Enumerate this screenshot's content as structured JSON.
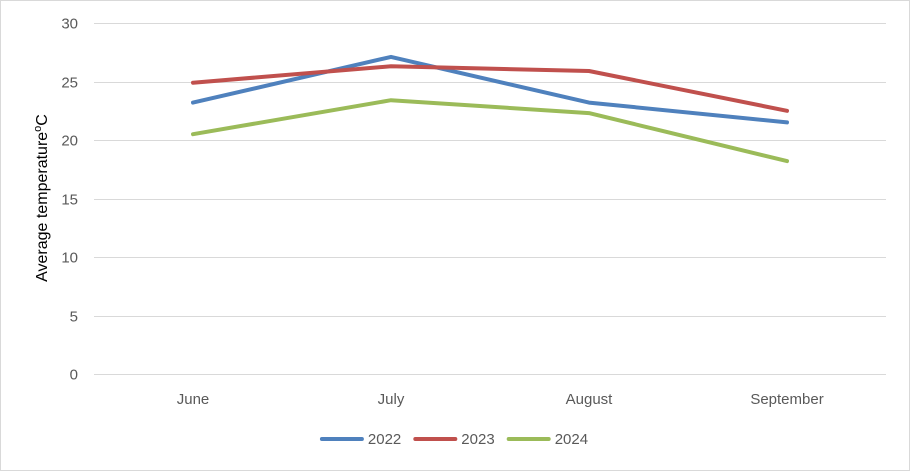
{
  "chart_data": {
    "type": "line",
    "categories": [
      "June",
      "July",
      "August",
      "September"
    ],
    "series": [
      {
        "name": "2022",
        "color": "#4F81BD",
        "values": [
          23.2,
          27.1,
          23.2,
          21.5
        ]
      },
      {
        "name": "2023",
        "color": "#C0504D",
        "values": [
          24.9,
          26.3,
          25.9,
          22.5
        ]
      },
      {
        "name": "2024",
        "color": "#9BBB59",
        "values": [
          20.5,
          23.4,
          22.3,
          18.2
        ]
      }
    ],
    "title": "",
    "xlabel": "",
    "ylabel": "Average temperature",
    "ylabel_superscript": "o",
    "ylabel_suffix": "C",
    "ylim": [
      0,
      30
    ],
    "yticks": [
      0,
      5,
      10,
      15,
      20,
      25,
      30
    ],
    "grid": true,
    "legend_position": "bottom",
    "gridline_color": "#d9d9d9"
  }
}
